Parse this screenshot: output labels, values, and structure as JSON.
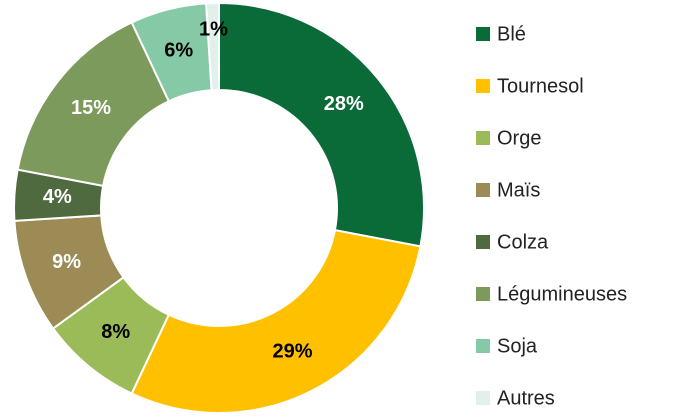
{
  "chart_data": {
    "type": "donut",
    "categories": [
      "Blé",
      "Tournesol",
      "Orge",
      "Maïs",
      "Colza",
      "Légumineuses",
      "Soja",
      "Autres"
    ],
    "values": [
      28,
      29,
      8,
      9,
      4,
      15,
      6,
      1
    ],
    "value_labels": [
      "28%",
      "29%",
      "8%",
      "9%",
      "4%",
      "15%",
      "6%",
      "1%"
    ],
    "colors": [
      "#0b6b38",
      "#ffc000",
      "#9bbb59",
      "#9c8b55",
      "#4f6a3e",
      "#7b9a5c",
      "#86c9a6",
      "#e2f0ea"
    ],
    "legend": "right"
  }
}
